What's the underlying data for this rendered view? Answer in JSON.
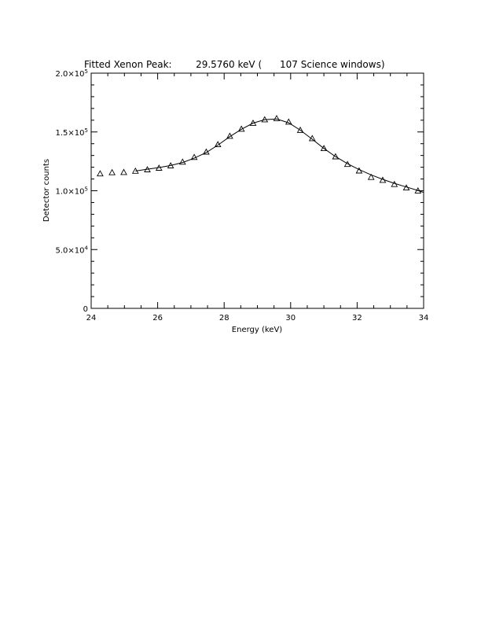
{
  "chart_data": {
    "type": "scatter",
    "title": "Fitted Xenon Peak:        29.5760 keV (      107 Science windows)",
    "xlabel": "Energy (keV)",
    "ylabel": "Detector counts",
    "xlim": [
      24,
      34
    ],
    "ylim": [
      0,
      200000
    ],
    "x_ticks": [
      24,
      26,
      28,
      30,
      32,
      34
    ],
    "x_tick_labels": [
      "24",
      "26",
      "28",
      "30",
      "32",
      "34"
    ],
    "y_ticks": [
      0,
      50000,
      100000,
      150000,
      200000
    ],
    "y_tick_labels": [
      {
        "mantissa": "0",
        "exponent": ""
      },
      {
        "mantissa": "5.0×10",
        "exponent": "4"
      },
      {
        "mantissa": "1.0×10",
        "exponent": "5"
      },
      {
        "mantissa": "1.5×10",
        "exponent": "5"
      },
      {
        "mantissa": "2.0×10",
        "exponent": "5"
      }
    ],
    "grid": false,
    "series": [
      {
        "marker": "triangle",
        "x": [
          24.27,
          24.63,
          24.98,
          25.33,
          25.69,
          26.04,
          26.39,
          26.75,
          27.1,
          27.46,
          27.81,
          28.17,
          28.52,
          28.87,
          29.22,
          29.58,
          29.94,
          30.29,
          30.65,
          31.0,
          31.35,
          31.71,
          32.06,
          32.42,
          32.77,
          33.12,
          33.48,
          33.83
        ],
        "y": [
          114500,
          115500,
          115700,
          116800,
          118000,
          119300,
          121300,
          124500,
          128500,
          133000,
          139300,
          146500,
          152500,
          157500,
          160500,
          161500,
          158500,
          151500,
          144500,
          136000,
          129000,
          122500,
          117000,
          111500,
          109000,
          105500,
          102500,
          100000
        ]
      },
      {
        "marker": "line",
        "x": [
          25.33,
          25.69,
          26.04,
          26.39,
          26.75,
          27.1,
          27.46,
          27.81,
          28.17,
          28.52,
          28.87,
          29.22,
          29.58,
          29.94,
          30.29,
          30.65,
          31.0,
          31.35,
          31.71,
          32.06,
          32.42,
          32.77,
          33.12,
          33.48,
          33.83,
          34.0
        ],
        "y": [
          116800,
          118300,
          119700,
          121500,
          124000,
          127700,
          132500,
          138800,
          146000,
          152300,
          157500,
          160500,
          161000,
          157800,
          151500,
          143800,
          136000,
          129000,
          123000,
          118000,
          113500,
          109700,
          106300,
          103200,
          100300,
          98500
        ]
      }
    ]
  }
}
